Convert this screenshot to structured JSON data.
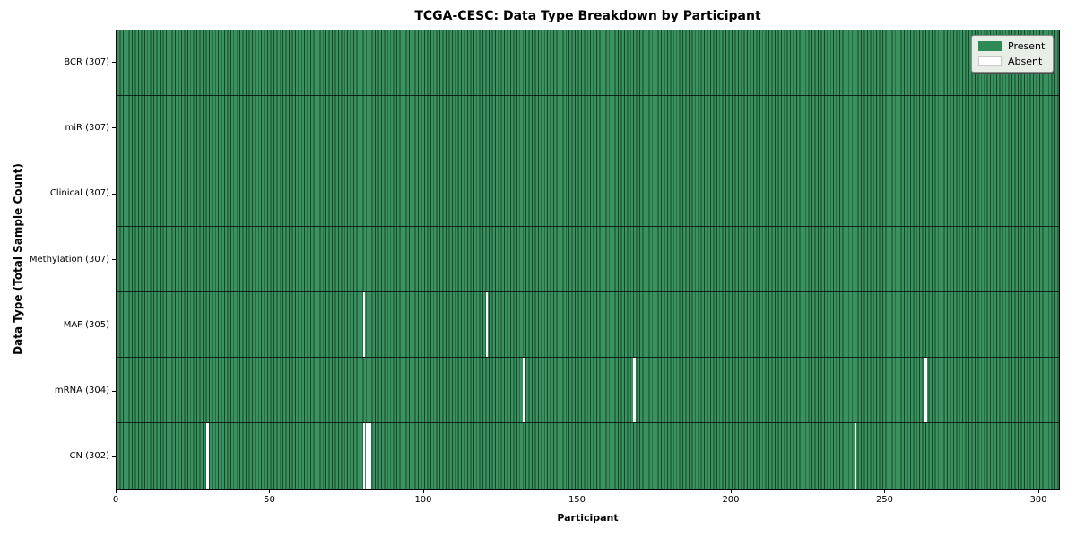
{
  "title": "TCGA-CESC: Data Type Breakdown by Participant",
  "chart_data": {
    "type": "heatmap",
    "title": "TCGA-CESC: Data Type Breakdown by Participant",
    "xlabel": "Participant",
    "ylabel": "Data Type (Total Sample Count)",
    "n_participants": 307,
    "x_ticks": [
      0,
      50,
      100,
      150,
      200,
      250,
      300
    ],
    "x_range": [
      0,
      307
    ],
    "grid": false,
    "legend_position": "upper right",
    "legend": [
      {
        "label": "Present",
        "color": "#2e8b57"
      },
      {
        "label": "Absent",
        "color": "#ffffff"
      }
    ],
    "colors": {
      "present": "#2e8b57",
      "absent": "#ffffff",
      "cell_edge": "rgba(0,0,0,0.5)"
    },
    "rows": [
      {
        "label": "BCR (307)",
        "data_type": "BCR",
        "present_count": 307,
        "absent_participants": []
      },
      {
        "label": "miR (307)",
        "data_type": "miR",
        "present_count": 307,
        "absent_participants": []
      },
      {
        "label": "Clinical (307)",
        "data_type": "Clinical",
        "present_count": 307,
        "absent_participants": []
      },
      {
        "label": "Methylation (307)",
        "data_type": "Methylation",
        "present_count": 307,
        "absent_participants": []
      },
      {
        "label": "MAF (305)",
        "data_type": "MAF",
        "present_count": 305,
        "absent_participants": [
          80,
          120
        ]
      },
      {
        "label": "mRNA (304)",
        "data_type": "mRNA",
        "present_count": 304,
        "absent_participants": [
          132,
          168,
          263
        ]
      },
      {
        "label": "CN (302)",
        "data_type": "CN",
        "present_count": 302,
        "absent_participants": [
          29,
          80,
          81,
          82,
          240
        ]
      }
    ]
  }
}
